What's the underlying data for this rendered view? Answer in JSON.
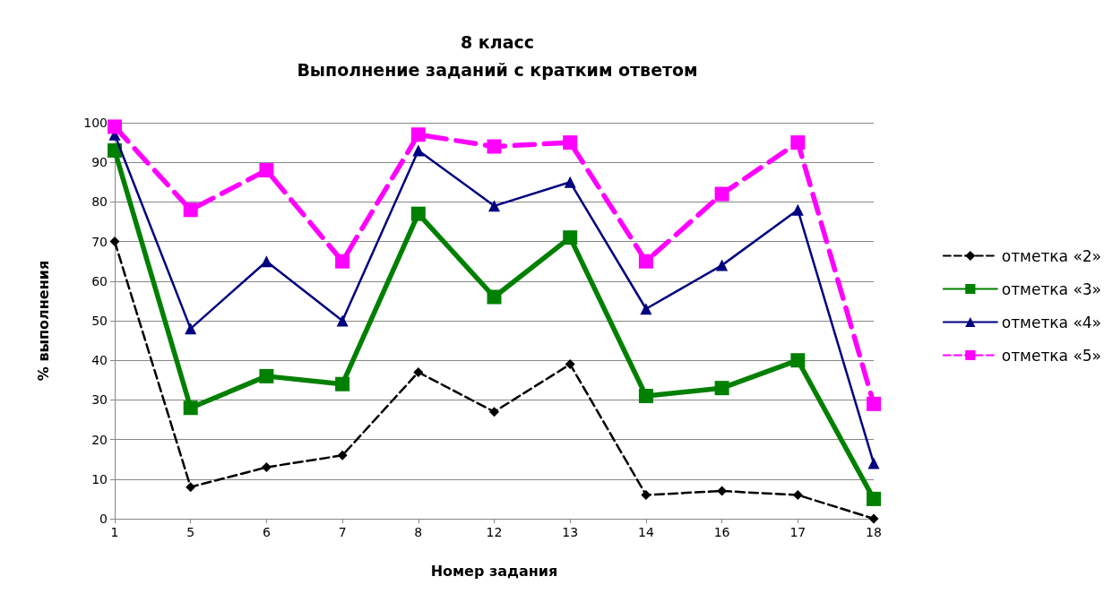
{
  "chart_data": {
    "type": "line",
    "title": "8 класс",
    "subtitle": "Выполнение заданий с кратким ответом",
    "xlabel": "Номер задания",
    "ylabel": "% выполнения",
    "categories": [
      "1",
      "5",
      "6",
      "7",
      "8",
      "12",
      "13",
      "14",
      "16",
      "17",
      "18"
    ],
    "ylim": [
      0,
      100
    ],
    "yticks": [
      0,
      10,
      20,
      30,
      40,
      50,
      60,
      70,
      80,
      90,
      100
    ],
    "grid": "y",
    "legend": "right",
    "series": [
      {
        "name": "отметка «2»",
        "color": "#000000",
        "marker": "diamond",
        "line_style": "dashed",
        "values": [
          70,
          8,
          13,
          16,
          37,
          27,
          39,
          6,
          7,
          6,
          0
        ]
      },
      {
        "name": "отметка «3»",
        "color": "#008000",
        "marker": "square",
        "line_style": "solid",
        "values": [
          93,
          28,
          36,
          34,
          77,
          56,
          71,
          31,
          33,
          40,
          5
        ]
      },
      {
        "name": "отметка «4»",
        "color": "#000080",
        "marker": "triangle",
        "line_style": "solid",
        "values": [
          97,
          48,
          65,
          50,
          93,
          79,
          85,
          53,
          64,
          78,
          14
        ]
      },
      {
        "name": "отметка «5»",
        "color": "#ff00ff",
        "marker": "square",
        "line_style": "dashed",
        "values": [
          99,
          78,
          88,
          65,
          97,
          94,
          95,
          65,
          82,
          95,
          29
        ]
      }
    ]
  }
}
